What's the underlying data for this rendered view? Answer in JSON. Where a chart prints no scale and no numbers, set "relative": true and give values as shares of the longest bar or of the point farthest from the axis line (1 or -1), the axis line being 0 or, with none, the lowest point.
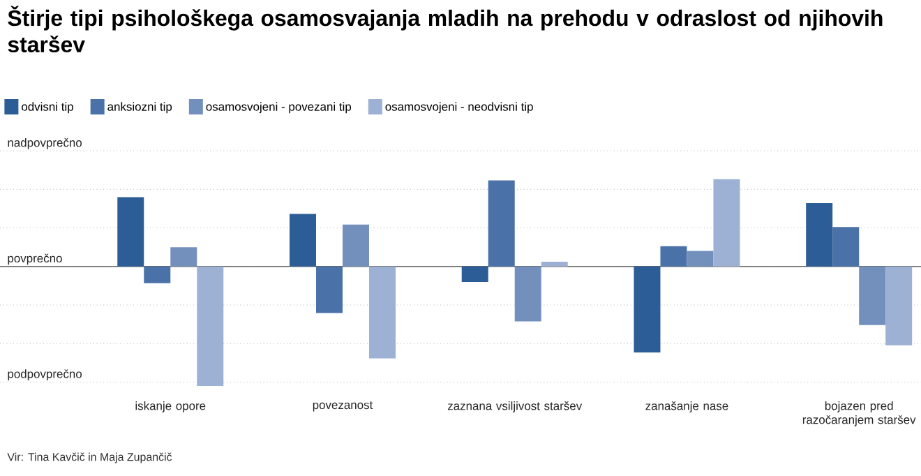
{
  "chart_data": {
    "type": "bar",
    "title": "Štirje tipi psihološkega osamosvajanja mladih na prehodu v odraslost od njihovih staršev",
    "categories": [
      "iskanje opore",
      "povezanost",
      "zaznana vsiljivost staršev",
      "zanašanje nase",
      "bojazen pred razočaranjem staršev"
    ],
    "series": [
      {
        "name": "odvisni tip",
        "color": "#2d5d96",
        "values": [
          0.58,
          0.44,
          -0.13,
          -0.72,
          0.53
        ]
      },
      {
        "name": "anksiozni tip",
        "color": "#4a72a8",
        "values": [
          -0.14,
          -0.39,
          0.72,
          0.17,
          0.33
        ]
      },
      {
        "name": "osamosvojeni - povezani tip",
        "color": "#7390bd",
        "values": [
          0.16,
          0.35,
          -0.46,
          0.13,
          -0.49
        ]
      },
      {
        "name": "osamosvojeni - neodvisni tip",
        "color": "#9db1d4",
        "values": [
          -1,
          -0.77,
          0.04,
          0.73,
          -0.66
        ]
      }
    ],
    "relative": true,
    "grid": "y",
    "legend": "top left",
    "annotations": [
      "nadpovprečno",
      "povprečno",
      "podpovprečno",
      "Vir: Tina Kavčič in Maja Zupančič"
    ]
  }
}
